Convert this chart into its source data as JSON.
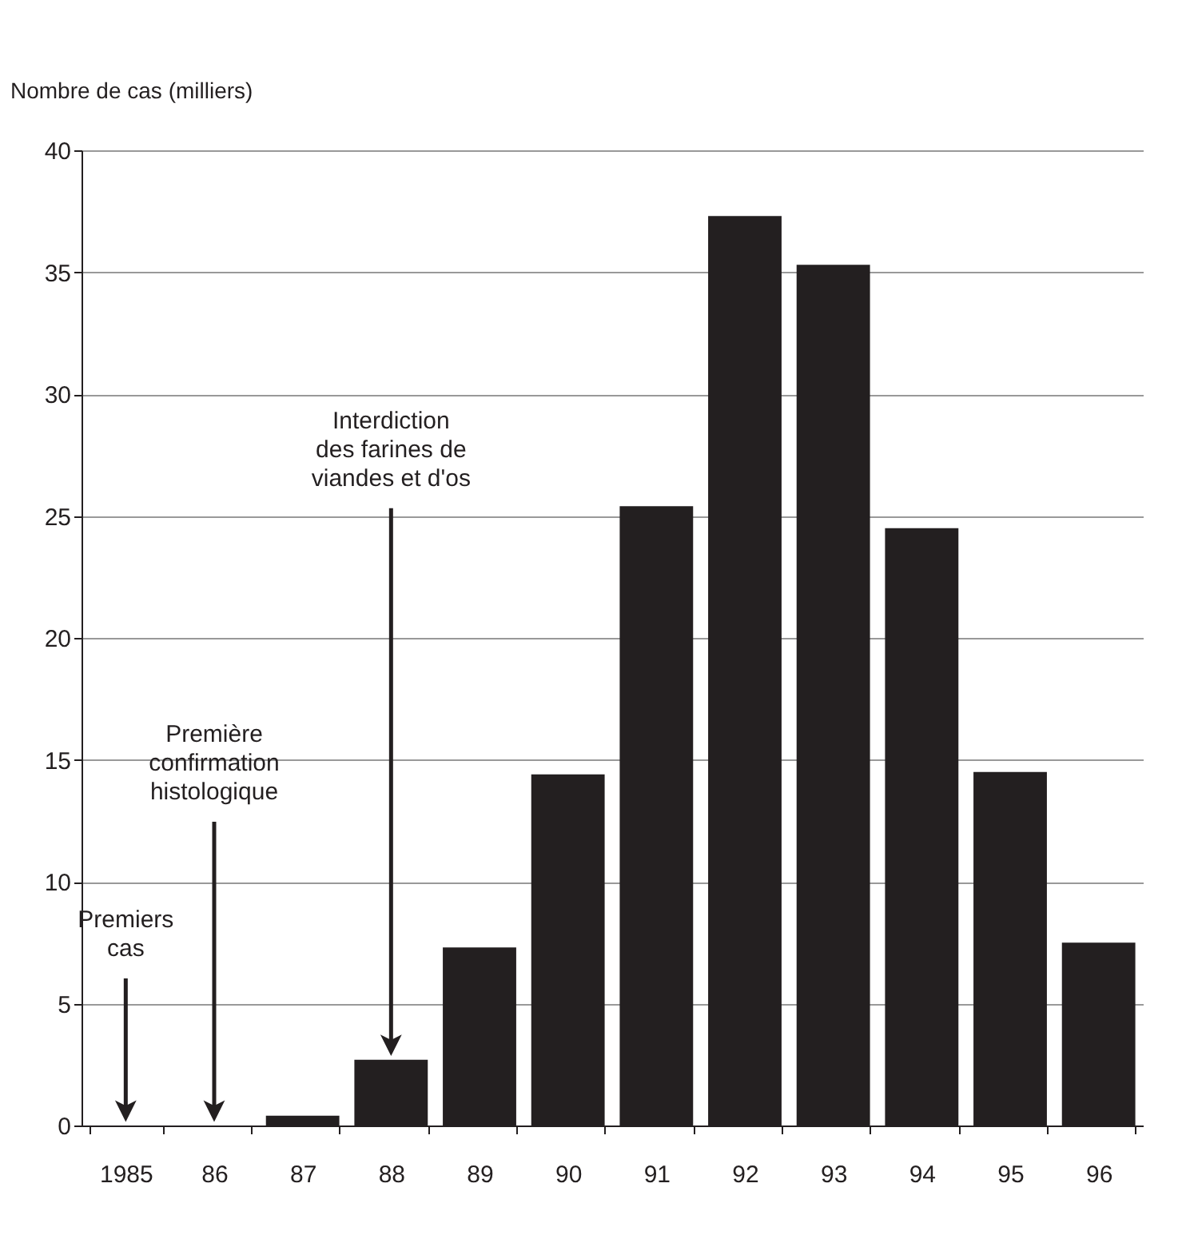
{
  "chart_data": {
    "type": "bar",
    "ylabel": "Nombre de cas (milliers)",
    "categories": [
      "1985",
      "86",
      "87",
      "88",
      "89",
      "90",
      "91",
      "92",
      "93",
      "94",
      "95",
      "96"
    ],
    "values": [
      0,
      0,
      0.4,
      2.7,
      7.3,
      14.4,
      25.4,
      37.3,
      35.3,
      24.5,
      14.5,
      7.5
    ],
    "color": "#231f20",
    "ylim": [
      0,
      40
    ],
    "yticks": [
      0,
      5,
      10,
      15,
      20,
      25,
      30,
      35,
      40
    ],
    "grid": "y",
    "annotations": [
      {
        "text": "Premiers\ncas",
        "x": "1985",
        "y": 0
      },
      {
        "text": "Première\nconfirmation\nhistologique",
        "x": "86",
        "y": 0
      },
      {
        "text": "Interdiction\ndes farines de\nviandes et d'os",
        "x": "88",
        "y": 2.7
      }
    ]
  }
}
